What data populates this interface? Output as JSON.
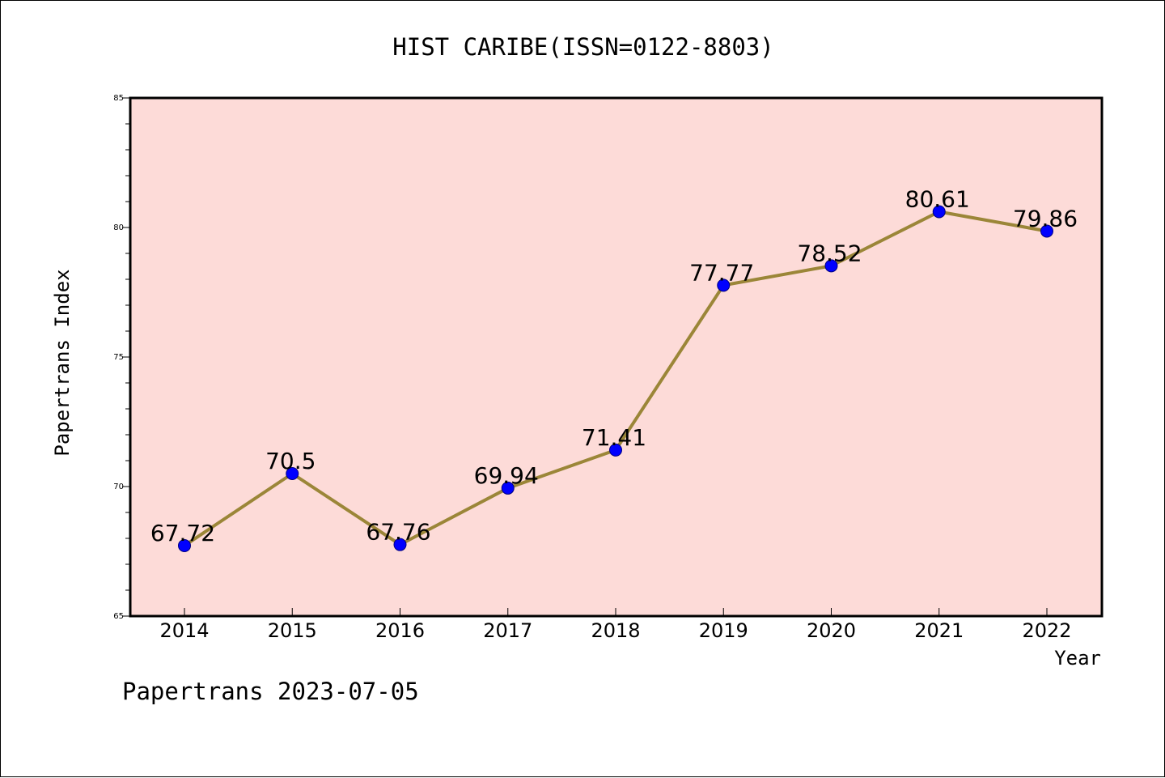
{
  "chart_data": {
    "type": "line",
    "title": "HIST CARIBE(ISSN=0122-8803)",
    "xlabel": "Year",
    "ylabel": "Papertrans Index",
    "categories": [
      "2014",
      "2015",
      "2016",
      "2017",
      "2018",
      "2019",
      "2020",
      "2021",
      "2022"
    ],
    "values": [
      67.72,
      70.5,
      67.76,
      69.94,
      71.41,
      77.77,
      78.52,
      80.61,
      79.86
    ],
    "data_labels": [
      "67.72",
      "70.5",
      "67.76",
      "69.94",
      "71.41",
      "77.77",
      "78.52",
      "80.61",
      "79.86"
    ],
    "ylim": [
      65,
      85
    ],
    "y_ticks": [
      65,
      70,
      75,
      80,
      85
    ],
    "y_minor_step": 1,
    "grid": false,
    "footer": "Papertrans 2023-07-05",
    "colors": {
      "plot_background": "#fddbd8",
      "line": "#9b8638",
      "marker": "#0000ff",
      "marker_edge": "#000080",
      "axes": "#000000"
    }
  }
}
